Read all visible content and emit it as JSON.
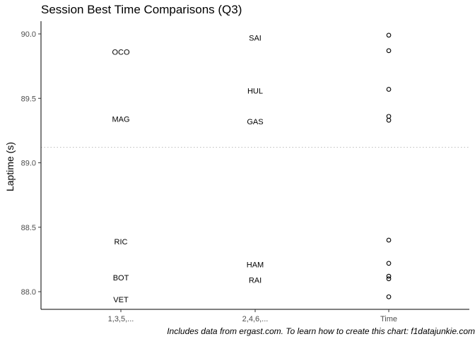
{
  "chart_data": {
    "type": "scatter",
    "title": "Session Best Time Comparisons (Q3)",
    "caption": "Includes data from ergast.com. To learn how to create this chart: f1datajunkie.com",
    "xlabel": "",
    "ylabel": "Laptime (s)",
    "categories": [
      "1,3,5,...",
      "2,4,6,...",
      "Time"
    ],
    "ylim": [
      87.93,
      90.08
    ],
    "yticks": [
      {
        "value": 88.0,
        "label": "88.0"
      },
      {
        "value": 88.5,
        "label": "88.5"
      },
      {
        "value": 89.0,
        "label": "89.0"
      },
      {
        "value": 89.5,
        "label": "89.5"
      },
      {
        "value": 90.0,
        "label": "90.0"
      }
    ],
    "grid": false,
    "reference_line": {
      "y": 89.12,
      "style": "dotted",
      "color": "#bbbbbb"
    },
    "series": [
      {
        "category": "1,3,5,...",
        "marker": "text",
        "points": [
          {
            "label": "OCO",
            "y": 89.86
          },
          {
            "label": "MAG",
            "y": 89.34
          },
          {
            "label": "RIC",
            "y": 88.39
          },
          {
            "label": "BOT",
            "y": 88.11
          },
          {
            "label": "VET",
            "y": 87.94
          }
        ]
      },
      {
        "category": "2,4,6,...",
        "marker": "text",
        "points": [
          {
            "label": "SAI",
            "y": 89.97
          },
          {
            "label": "HUL",
            "y": 89.56
          },
          {
            "label": "GAS",
            "y": 89.32
          },
          {
            "label": "HAM",
            "y": 88.21
          },
          {
            "label": "RAI",
            "y": 88.09
          }
        ]
      },
      {
        "category": "Time",
        "marker": "circle",
        "points": [
          {
            "y": 89.99
          },
          {
            "y": 89.87
          },
          {
            "y": 89.57
          },
          {
            "y": 89.36
          },
          {
            "y": 89.33
          },
          {
            "y": 88.4
          },
          {
            "y": 88.22
          },
          {
            "y": 88.12
          },
          {
            "y": 88.1
          },
          {
            "y": 87.96
          }
        ]
      }
    ]
  }
}
